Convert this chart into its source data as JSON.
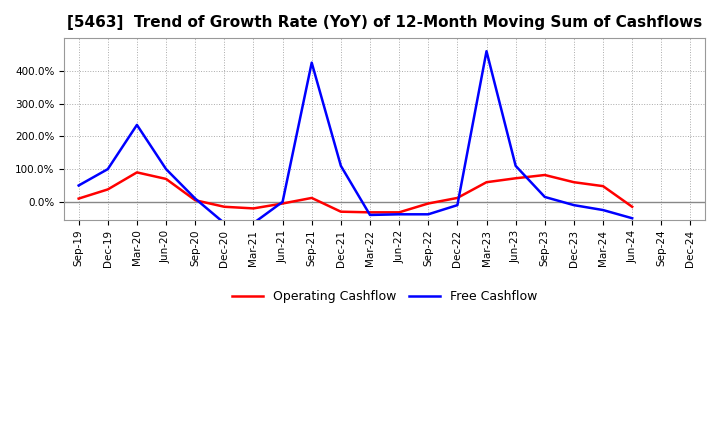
{
  "title": "[5463]  Trend of Growth Rate (YoY) of 12-Month Moving Sum of Cashflows",
  "x_labels": [
    "Sep-19",
    "Dec-19",
    "Mar-20",
    "Jun-20",
    "Sep-20",
    "Dec-20",
    "Mar-21",
    "Jun-21",
    "Sep-21",
    "Dec-21",
    "Mar-22",
    "Jun-22",
    "Sep-22",
    "Dec-22",
    "Mar-23",
    "Jun-23",
    "Sep-23",
    "Dec-23",
    "Mar-24",
    "Jun-24",
    "Sep-24",
    "Dec-24"
  ],
  "operating_cashflow": [
    0.1,
    0.38,
    0.9,
    0.7,
    0.05,
    -0.15,
    -0.2,
    -0.05,
    0.12,
    -0.3,
    -0.32,
    -0.32,
    -0.05,
    0.12,
    0.6,
    0.72,
    0.82,
    0.6,
    0.48,
    -0.15,
    null,
    null
  ],
  "free_cashflow": [
    0.5,
    1.0,
    2.35,
    1.0,
    0.1,
    -0.65,
    -0.65,
    0.0,
    4.25,
    1.1,
    -0.4,
    -0.38,
    -0.38,
    -0.1,
    4.6,
    1.1,
    0.15,
    -0.1,
    -0.25,
    -0.5,
    null,
    null
  ],
  "ylim": [
    -0.55,
    5.0
  ],
  "yticks": [
    0.0,
    1.0,
    2.0,
    3.0,
    4.0
  ],
  "ytick_labels": [
    "0.0%",
    "100.0%",
    "200.0%",
    "300.0%",
    "400.0%"
  ],
  "operating_color": "#ff0000",
  "free_color": "#0000ff",
  "background_color": "#ffffff",
  "plot_bg_color": "#e8e8e8",
  "grid_color": "#aaaaaa",
  "legend_operating": "Operating Cashflow",
  "legend_free": "Free Cashflow",
  "zero_line_color": "#888888",
  "title_fontsize": 11,
  "tick_fontsize": 7.5,
  "legend_fontsize": 9,
  "linewidth": 1.8
}
